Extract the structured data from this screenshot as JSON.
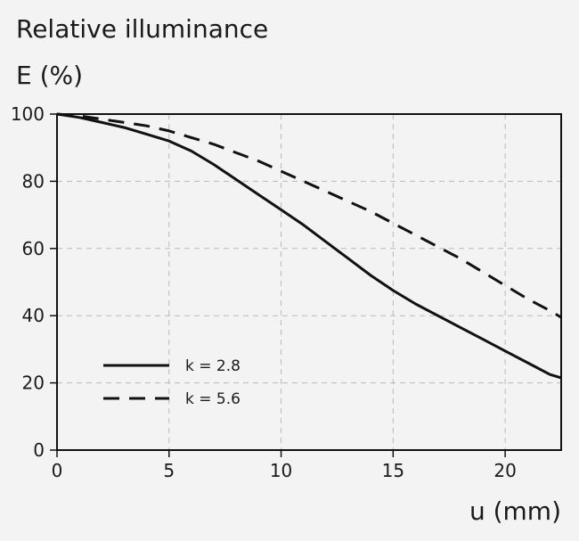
{
  "chart_data": {
    "type": "line",
    "title": "Relative illuminance",
    "ylabel": "E (%)",
    "xlabel": "u (mm)",
    "xlim": [
      0,
      22.5
    ],
    "ylim": [
      0,
      100
    ],
    "x_ticks": [
      0,
      5,
      10,
      15,
      20
    ],
    "y_ticks": [
      0,
      20,
      40,
      60,
      80,
      100
    ],
    "grid": true,
    "legend_position": "lower-left",
    "series": [
      {
        "name": "k = 2.8",
        "style": "solid",
        "color": "#111111",
        "points": [
          [
            0,
            100
          ],
          [
            1,
            99
          ],
          [
            2,
            97.5
          ],
          [
            3,
            96
          ],
          [
            4,
            94
          ],
          [
            5,
            92
          ],
          [
            6,
            89
          ],
          [
            7,
            85
          ],
          [
            8,
            80.5
          ],
          [
            9,
            76
          ],
          [
            10,
            71.5
          ],
          [
            11,
            67
          ],
          [
            12,
            62
          ],
          [
            13,
            57
          ],
          [
            14,
            52
          ],
          [
            15,
            47.5
          ],
          [
            16,
            43.5
          ],
          [
            17,
            40
          ],
          [
            18,
            36.5
          ],
          [
            19,
            33
          ],
          [
            20,
            29.5
          ],
          [
            21,
            26
          ],
          [
            22,
            22.5
          ],
          [
            22.5,
            21.5
          ]
        ]
      },
      {
        "name": "k = 5.6",
        "style": "dashed",
        "color": "#111111",
        "points": [
          [
            0,
            100
          ],
          [
            1,
            99.5
          ],
          [
            2,
            98.5
          ],
          [
            3,
            97.5
          ],
          [
            4,
            96.5
          ],
          [
            5,
            95
          ],
          [
            6,
            93
          ],
          [
            7,
            91
          ],
          [
            8,
            88.5
          ],
          [
            9,
            86
          ],
          [
            10,
            83
          ],
          [
            11,
            80
          ],
          [
            12,
            77
          ],
          [
            13,
            74
          ],
          [
            14,
            71
          ],
          [
            15,
            67.5
          ],
          [
            16,
            64
          ],
          [
            17,
            60.5
          ],
          [
            18,
            57
          ],
          [
            19,
            53
          ],
          [
            20,
            49
          ],
          [
            21,
            45
          ],
          [
            22,
            41.5
          ],
          [
            22.5,
            39.5
          ]
        ]
      }
    ]
  }
}
